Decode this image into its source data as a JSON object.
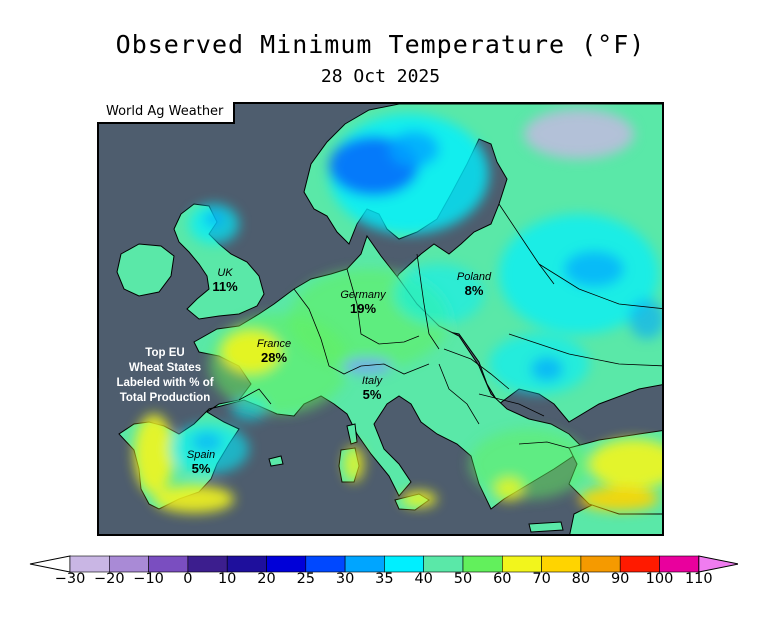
{
  "title": "Observed Minimum Temperature (°F)",
  "subtitle": "28 Oct 2025",
  "credit": "World Ag Weather",
  "note_lines": [
    "Top EU",
    "Wheat States",
    "Labeled with % of",
    "Total Production"
  ],
  "regions": [
    {
      "id": "uk",
      "name": "UK",
      "pct": "11%"
    },
    {
      "id": "france",
      "name": "France",
      "pct": "28%"
    },
    {
      "id": "germany",
      "name": "Germany",
      "pct": "19%"
    },
    {
      "id": "poland",
      "name": "Poland",
      "pct": "8%"
    },
    {
      "id": "italy",
      "name": "Italy",
      "pct": "5%"
    },
    {
      "id": "spain",
      "name": "Spain",
      "pct": "5%"
    }
  ],
  "colorbar": {
    "colors": [
      "#c9b6e4",
      "#a98ad6",
      "#7a4ec0",
      "#3c1e8e",
      "#1e0f9c",
      "#0000d8",
      "#0048ff",
      "#00a5ff",
      "#00efff",
      "#5ae8a8",
      "#62f05c",
      "#f2f51c",
      "#ffd400",
      "#f59a00",
      "#ff1a00",
      "#e9009d"
    ],
    "under_color": "#ffffff",
    "over_color": "#f07cf0",
    "ticks": [
      "−30",
      "−20",
      "−10",
      "0",
      "10",
      "20",
      "25",
      "30",
      "35",
      "40",
      "50",
      "60",
      "70",
      "80",
      "90",
      "100",
      "110"
    ]
  }
}
